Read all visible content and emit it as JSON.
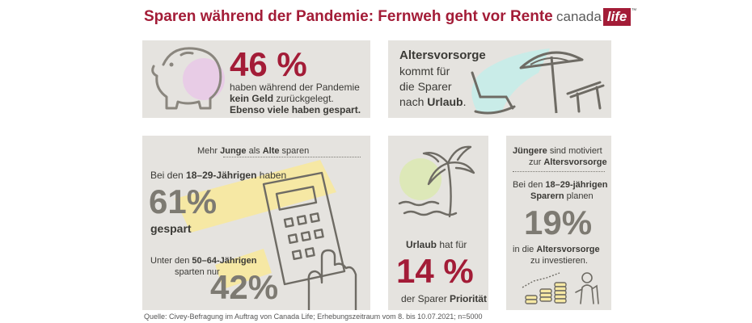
{
  "header": {
    "title": "Sparen während der Pandemie: Fernweh geht vor Rente"
  },
  "logo": {
    "brand_text": "canada",
    "brand_accent": "life",
    "trademark": "™"
  },
  "colors": {
    "accent_red": "#a31c37",
    "panel_grey": "#e5e3df",
    "big_number_grey": "#7d7a72",
    "text_dark": "#3b3a36"
  },
  "panel_savings": {
    "percent": "46 %",
    "line1": "haben während der Pandemie",
    "line2_bold": "kein Geld",
    "line2_rest": " zurückgelegt.",
    "line3": "Ebenso viele haben gespart.",
    "icon": "piggy-bank-icon"
  },
  "panel_retirement": {
    "line1_bold": "Altersvorsorge",
    "line2": "kommt für",
    "line3": "die Sparer",
    "line4_pre": "nach ",
    "line4_bold": "Urlaub",
    "line4_post": ".",
    "icon": "beach-umbrella-icon"
  },
  "panel_young_old": {
    "head_pre": "Mehr ",
    "head_bold1": "Junge",
    "head_mid": " als ",
    "head_bold2": "Alte",
    "head_post": " sparen",
    "young_pre": "Bei den ",
    "young_bold": "18–29-Jährigen",
    "young_post": " haben",
    "young_percent": "61%",
    "young_label": "gespart",
    "old_pre": "Unter den ",
    "old_bold": "50–64-Jährigen",
    "old_line2": "sparten nur",
    "old_percent": "42%",
    "icon": "calculator-icon"
  },
  "panel_vacation": {
    "line1_bold": "Urlaub",
    "line1_rest": " hat für",
    "percent": "14 %",
    "line3_pre": "der Sparer ",
    "line3_bold": "Priorität",
    "icon": "palm-tree-icon"
  },
  "panel_younger": {
    "head1_bold": "Jüngere",
    "head1_rest": " sind motiviert",
    "head2_pre": "zur ",
    "head2_bold": "Altersvorsorge",
    "body1_pre": "Bei den ",
    "body1_bold": "18–29-jährigen",
    "body2_bold": "Sparern",
    "body2_rest": " planen",
    "percent": "19%",
    "body3_pre": "in die ",
    "body3_bold": "Altersvorsorge",
    "body4": "zu investieren.",
    "icon": "coin-stacks-icon"
  },
  "footer": {
    "source": "Quelle: Civey-Befragung im Auftrag von Canada Life; Erhebungszeitraum vom 8. bis 10.07.2021; n=5000"
  }
}
